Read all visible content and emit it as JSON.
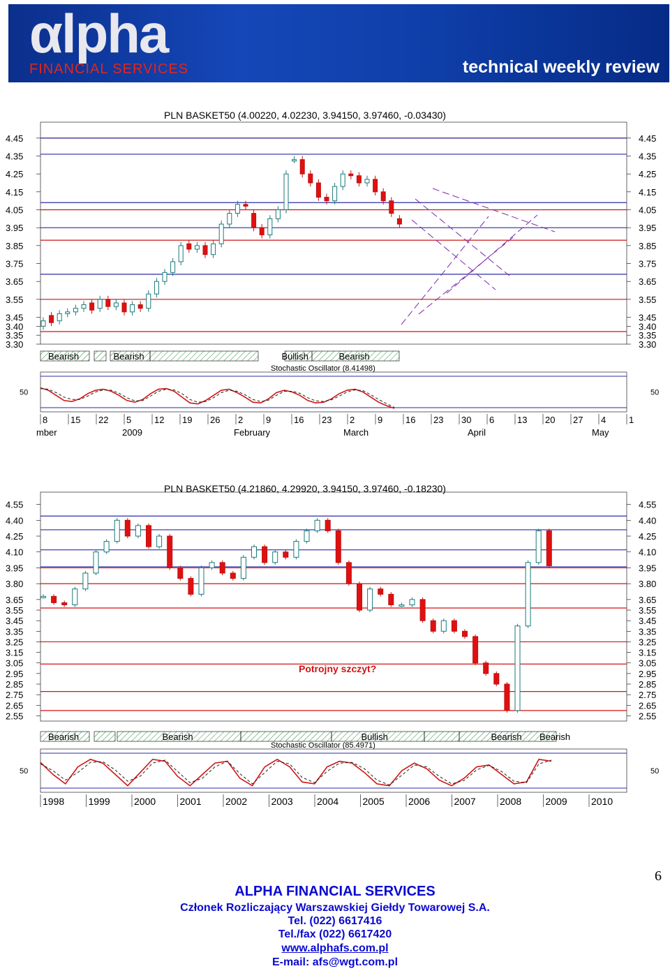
{
  "header": {
    "logo_text": "Alpha",
    "logo_subtitle": "FINANCIAL SERVICES",
    "tagline": "technical weekly review"
  },
  "chart_data": [
    {
      "type": "candlestick",
      "title": "PLN BASKET50 (4.00220, 4.02230, 3.94150, 3.97460, -0.03430)",
      "y_ticks": [
        "4.45",
        "4.35",
        "4.25",
        "4.15",
        "4.05",
        "3.95",
        "3.85",
        "3.75",
        "3.65",
        "3.55",
        "3.45",
        "3.40",
        "3.35",
        "3.30"
      ],
      "ylim": [
        3.3,
        4.5
      ],
      "horizontal_lines": {
        "red": [
          4.45,
          4.05,
          3.88,
          3.55,
          3.37
        ],
        "blue": [
          4.45,
          4.36,
          4.09,
          3.95,
          3.69
        ]
      },
      "x_ticks": [
        "8",
        "15",
        "22",
        "5",
        "12",
        "19",
        "26",
        "2",
        "9",
        "16",
        "23",
        "2",
        "9",
        "16",
        "23",
        "30",
        "6",
        "13",
        "20",
        "27",
        "4",
        "1"
      ],
      "x_month_labels": [
        "mber",
        "2009",
        "February",
        "March",
        "April",
        "May"
      ],
      "signal_bands": [
        "Bearish",
        "Bearish",
        "Bullish",
        "Bearish"
      ],
      "oscillator_title": "Stochastic Oscillator (8.41498)",
      "oscillator_level": "50",
      "oscillator_k": [
        62,
        55,
        40,
        25,
        22,
        30,
        45,
        55,
        58,
        52,
        40,
        25,
        20,
        28,
        45,
        58,
        60,
        52,
        35,
        18,
        15,
        25,
        40,
        55,
        58,
        48,
        35,
        20,
        18,
        30,
        48,
        55,
        50,
        40,
        25,
        18,
        20,
        30,
        45,
        55,
        58,
        50,
        35,
        20,
        10,
        2
      ],
      "oscillator_d": [
        60,
        58,
        48,
        35,
        28,
        28,
        38,
        50,
        56,
        55,
        46,
        33,
        24,
        25,
        38,
        52,
        58,
        56,
        45,
        28,
        20,
        22,
        33,
        48,
        55,
        52,
        42,
        28,
        22,
        26,
        40,
        52,
        52,
        46,
        33,
        24,
        22,
        27,
        38,
        50,
        56,
        54,
        42,
        28,
        16,
        5
      ],
      "candles_close": [
        3.43,
        3.42,
        3.47,
        3.48,
        3.5,
        3.52,
        3.49,
        3.55,
        3.51,
        3.53,
        3.48,
        3.52,
        3.5,
        3.58,
        3.65,
        3.7,
        3.76,
        3.85,
        3.83,
        3.85,
        3.8,
        3.86,
        3.97,
        4.03,
        4.08,
        4.07,
        3.95,
        3.91,
        4.0,
        4.05,
        4.25,
        4.33,
        4.25,
        4.2,
        4.12,
        4.1,
        4.18,
        4.25,
        4.24,
        4.2,
        4.22,
        4.15,
        4.1,
        4.03,
        3.97
      ],
      "candles_open": [
        3.4,
        3.46,
        3.43,
        3.47,
        3.48,
        3.5,
        3.53,
        3.5,
        3.55,
        3.51,
        3.53,
        3.48,
        3.52,
        3.5,
        3.58,
        3.65,
        3.7,
        3.76,
        3.86,
        3.83,
        3.85,
        3.8,
        3.86,
        3.97,
        4.03,
        4.08,
        4.03,
        3.95,
        3.91,
        4.0,
        4.05,
        4.33,
        4.33,
        4.25,
        4.2,
        4.12,
        4.1,
        4.18,
        4.25,
        4.24,
        4.2,
        4.22,
        4.15,
        4.1,
        4.0
      ],
      "projection_lines": "dashed purple channel grid"
    },
    {
      "type": "candlestick",
      "title": "PLN BASKET50 (4.21860, 4.29920, 3.94150, 3.97460, -0.18230)",
      "y_ticks": [
        "4.55",
        "4.40",
        "4.25",
        "4.10",
        "3.95",
        "3.80",
        "3.65",
        "3.55",
        "3.45",
        "3.35",
        "3.25",
        "3.15",
        "3.05",
        "2.95",
        "2.85",
        "2.75",
        "2.65",
        "2.55"
      ],
      "ylim": [
        2.5,
        4.6
      ],
      "horizontal_lines": {
        "blue": [
          4.44,
          4.31,
          4.12,
          3.96
        ],
        "red": [
          3.95,
          3.8,
          3.57,
          3.25,
          3.04,
          2.78,
          2.6
        ]
      },
      "x_ticks": [
        "1998",
        "1999",
        "2000",
        "2001",
        "2002",
        "2003",
        "2004",
        "2005",
        "2006",
        "2007",
        "2008",
        "2009",
        "2010"
      ],
      "signal_bands": [
        "Bearish",
        "Bearish",
        "Bullish",
        "Bearish",
        "Bearish"
      ],
      "annotation": "Potrojny szczyt?",
      "oscillator_title": "Stochastic Oscillator (85.4971)",
      "oscillator_level": "50",
      "oscillator_k": [
        72,
        40,
        15,
        60,
        80,
        70,
        40,
        10,
        45,
        80,
        75,
        35,
        10,
        40,
        70,
        75,
        30,
        10,
        60,
        80,
        60,
        20,
        15,
        60,
        75,
        70,
        45,
        15,
        10,
        50,
        70,
        55,
        25,
        10,
        30,
        60,
        65,
        40,
        15,
        20,
        80,
        75
      ],
      "oscillator_d": [
        68,
        50,
        25,
        45,
        72,
        74,
        52,
        22,
        35,
        70,
        78,
        48,
        18,
        30,
        60,
        75,
        42,
        15,
        45,
        75,
        68,
        32,
        18,
        48,
        70,
        72,
        55,
        25,
        12,
        38,
        65,
        60,
        35,
        15,
        24,
        52,
        64,
        48,
        22,
        18,
        68,
        78
      ],
      "closes": [
        3.68,
        3.62,
        3.6,
        3.75,
        3.9,
        4.1,
        4.2,
        4.4,
        4.25,
        4.35,
        4.15,
        4.25,
        3.95,
        3.85,
        3.7,
        3.95,
        4.0,
        3.9,
        3.85,
        4.05,
        4.15,
        4.0,
        4.1,
        4.05,
        4.2,
        4.3,
        4.4,
        4.3,
        4.0,
        3.8,
        3.55,
        3.75,
        3.7,
        3.6,
        3.6,
        3.65,
        3.45,
        3.35,
        3.45,
        3.35,
        3.3,
        3.05,
        2.95,
        2.85,
        2.6,
        3.4,
        4.0,
        4.3,
        3.97
      ]
    }
  ],
  "footer": {
    "company": "ALPHA FINANCIAL SERVICES",
    "member": "Członek Rozliczający Warszawskiej Giełdy Towarowej S.A.",
    "tel": "Tel. (022) 6617416",
    "fax": "Tel./fax (022) 6617420",
    "web": "www.alphafs.com.pl",
    "email": "E-mail: afs@wgt.com.pl",
    "page_number": "6"
  }
}
